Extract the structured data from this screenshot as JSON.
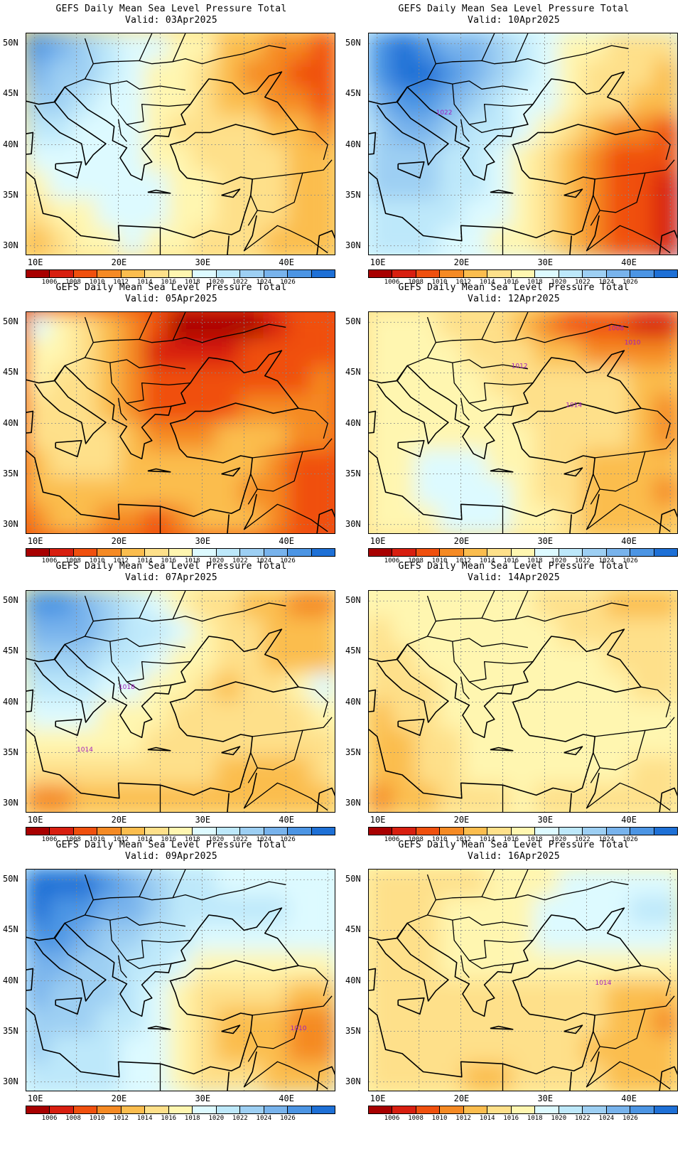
{
  "colors": {
    "fill": [
      "#a80000",
      "#d81f10",
      "#f0500e",
      "#f58a24",
      "#fbbd4e",
      "#fee08a",
      "#fff6b0",
      "#ddfaff",
      "#bde8fa",
      "#9dcff3",
      "#78b3ec",
      "#4c95e4",
      "#1e70d6"
    ],
    "contour_line": "#a020c0",
    "coast": "#000000"
  },
  "axes": {
    "lat_labels": [
      "50N",
      "45N",
      "40N",
      "35N",
      "30N"
    ],
    "lon_labels": [
      "10E",
      "20E",
      "30E",
      "40E"
    ]
  },
  "colorbar": {
    "labels": [
      "1006",
      "1008",
      "1010",
      "1012",
      "1014",
      "1016",
      "1018",
      "1020",
      "1022",
      "1024",
      "1026"
    ]
  },
  "panels": [
    {
      "title": "GEFS Daily Mean Sea Level Pressure Total",
      "valid": "Valid: 03Apr2025",
      "field": [
        [
          11,
          10,
          9,
          8,
          7,
          7,
          6,
          6,
          4,
          4,
          3,
          3,
          2
        ],
        [
          10,
          9,
          9,
          8,
          7,
          6,
          6,
          5,
          4,
          3,
          3,
          2,
          2
        ],
        [
          9,
          9,
          8,
          7,
          7,
          6,
          6,
          5,
          4,
          4,
          3,
          3,
          2
        ],
        [
          8,
          8,
          7,
          7,
          7,
          6,
          5,
          5,
          5,
          5,
          4,
          4,
          3
        ],
        [
          7,
          7,
          7,
          7,
          7,
          6,
          6,
          5,
          5,
          5,
          5,
          4,
          4
        ],
        [
          6,
          7,
          7,
          7,
          7,
          7,
          6,
          6,
          5,
          5,
          5,
          4,
          4
        ],
        [
          5,
          6,
          6,
          7,
          7,
          7,
          6,
          6,
          5,
          5,
          5,
          4,
          4
        ],
        [
          4,
          5,
          6,
          6,
          7,
          6,
          6,
          5,
          5,
          5,
          4,
          4,
          4
        ]
      ],
      "contour_labels": []
    },
    {
      "title": "GEFS Daily Mean Sea Level Pressure Total",
      "valid": "Valid: 10Apr2025",
      "field": [
        [
          11,
          12,
          11,
          10,
          10,
          9,
          8,
          7,
          6,
          6,
          5,
          5,
          5
        ],
        [
          11,
          12,
          12,
          11,
          10,
          9,
          8,
          7,
          6,
          5,
          5,
          5,
          4
        ],
        [
          10,
          11,
          11,
          10,
          9,
          8,
          7,
          7,
          6,
          5,
          5,
          4,
          4
        ],
        [
          9,
          10,
          10,
          9,
          8,
          8,
          7,
          6,
          5,
          4,
          3,
          3,
          2
        ],
        [
          9,
          9,
          9,
          8,
          8,
          7,
          6,
          5,
          4,
          3,
          2,
          2,
          2
        ],
        [
          9,
          9,
          9,
          8,
          8,
          7,
          6,
          5,
          4,
          3,
          2,
          2,
          1
        ],
        [
          8,
          8,
          8,
          8,
          7,
          7,
          6,
          5,
          4,
          3,
          2,
          2,
          1
        ],
        [
          8,
          8,
          8,
          7,
          7,
          6,
          6,
          5,
          4,
          3,
          2,
          2,
          1
        ]
      ],
      "contour_labels": [
        {
          "text": "1022",
          "lon": 18,
          "lat": 43
        }
      ]
    },
    {
      "title": "GEFS Daily Mean Sea Level Pressure Total",
      "valid": "Valid: 05Apr2025",
      "field": [
        [
          7,
          6,
          5,
          4,
          3,
          2,
          0,
          0,
          0,
          0,
          1,
          2,
          2
        ],
        [
          6,
          6,
          5,
          4,
          3,
          1,
          1,
          1,
          1,
          2,
          2,
          2,
          2
        ],
        [
          6,
          5,
          5,
          4,
          3,
          2,
          2,
          2,
          2,
          2,
          2,
          2,
          3
        ],
        [
          5,
          5,
          5,
          4,
          3,
          2,
          2,
          2,
          2,
          3,
          3,
          3,
          3
        ],
        [
          5,
          5,
          5,
          5,
          4,
          3,
          3,
          3,
          4,
          4,
          4,
          3,
          3
        ],
        [
          4,
          5,
          5,
          5,
          4,
          4,
          4,
          4,
          4,
          4,
          3,
          2,
          2
        ],
        [
          4,
          4,
          4,
          4,
          4,
          4,
          4,
          4,
          4,
          3,
          3,
          2,
          2
        ],
        [
          3,
          4,
          4,
          3,
          3,
          2,
          3,
          4,
          4,
          4,
          3,
          2,
          2
        ]
      ],
      "contour_labels": []
    },
    {
      "title": "GEFS Daily Mean Sea Level Pressure Total",
      "valid": "Valid: 12Apr2025",
      "field": [
        [
          6,
          6,
          6,
          5,
          5,
          5,
          4,
          3,
          2,
          2,
          2,
          1,
          1
        ],
        [
          6,
          6,
          6,
          6,
          5,
          5,
          5,
          4,
          4,
          3,
          3,
          3,
          3
        ],
        [
          6,
          6,
          6,
          6,
          6,
          5,
          5,
          5,
          5,
          5,
          5,
          4,
          4
        ],
        [
          6,
          6,
          6,
          6,
          6,
          6,
          5,
          5,
          5,
          5,
          5,
          4,
          3
        ],
        [
          6,
          6,
          6,
          6,
          6,
          6,
          6,
          5,
          5,
          5,
          5,
          4,
          3
        ],
        [
          6,
          6,
          7,
          7,
          7,
          6,
          6,
          5,
          5,
          4,
          4,
          4,
          4
        ],
        [
          6,
          6,
          7,
          7,
          7,
          7,
          6,
          5,
          5,
          4,
          4,
          4,
          3
        ],
        [
          6,
          6,
          6,
          7,
          7,
          7,
          6,
          6,
          5,
          4,
          4,
          4,
          4
        ]
      ],
      "contour_labels": [
        {
          "text": "1008",
          "lon": 38.5,
          "lat": 49.2
        },
        {
          "text": "1010",
          "lon": 40.5,
          "lat": 47.8
        },
        {
          "text": "1012",
          "lon": 27,
          "lat": 45.5
        },
        {
          "text": "1014",
          "lon": 33.5,
          "lat": 41.6
        }
      ]
    },
    {
      "title": "GEFS Daily Mean Sea Level Pressure Total",
      "valid": "Valid: 07Apr2025",
      "field": [
        [
          11,
          11,
          10,
          9,
          8,
          7,
          6,
          5,
          5,
          4,
          4,
          3,
          3
        ],
        [
          10,
          10,
          10,
          9,
          8,
          8,
          7,
          6,
          5,
          5,
          4,
          4,
          4
        ],
        [
          9,
          9,
          9,
          8,
          8,
          7,
          6,
          6,
          5,
          5,
          4,
          4,
          4
        ],
        [
          8,
          8,
          8,
          7,
          7,
          6,
          6,
          5,
          4,
          5,
          5,
          6,
          7
        ],
        [
          7,
          7,
          7,
          6,
          6,
          6,
          5,
          5,
          5,
          5,
          5,
          5,
          6
        ],
        [
          6,
          6,
          6,
          6,
          6,
          5,
          5,
          5,
          5,
          5,
          5,
          5,
          5
        ],
        [
          5,
          5,
          5,
          5,
          5,
          5,
          5,
          5,
          4,
          4,
          4,
          4,
          5
        ],
        [
          3,
          3,
          4,
          4,
          4,
          4,
          4,
          4,
          4,
          4,
          4,
          4,
          4
        ]
      ],
      "contour_labels": [
        {
          "text": "1018",
          "lon": 21,
          "lat": 41.3
        },
        {
          "text": "1014",
          "lon": 16,
          "lat": 35.1
        }
      ]
    },
    {
      "title": "GEFS Daily Mean Sea Level Pressure Total",
      "valid": "Valid: 14Apr2025",
      "field": [
        [
          6,
          6,
          6,
          6,
          6,
          6,
          6,
          5,
          5,
          5,
          4,
          4,
          4
        ],
        [
          5,
          6,
          6,
          6,
          6,
          6,
          6,
          6,
          5,
          5,
          5,
          5,
          5
        ],
        [
          5,
          5,
          6,
          6,
          6,
          6,
          6,
          6,
          6,
          6,
          5,
          5,
          5
        ],
        [
          5,
          5,
          5,
          6,
          6,
          6,
          6,
          6,
          6,
          6,
          6,
          5,
          5
        ],
        [
          4,
          5,
          5,
          6,
          6,
          6,
          6,
          6,
          6,
          6,
          6,
          6,
          6
        ],
        [
          4,
          4,
          5,
          5,
          6,
          6,
          6,
          6,
          6,
          6,
          6,
          6,
          6
        ],
        [
          4,
          4,
          5,
          5,
          6,
          6,
          6,
          6,
          6,
          6,
          6,
          5,
          5
        ],
        [
          3,
          4,
          4,
          5,
          5,
          5,
          6,
          5,
          5,
          5,
          5,
          5,
          5
        ]
      ],
      "contour_labels": []
    },
    {
      "title": "GEFS Daily Mean Sea Level Pressure Total",
      "valid": "Valid: 09Apr2025",
      "field": [
        [
          12,
          12,
          12,
          11,
          10,
          9,
          8,
          8,
          7,
          7,
          7,
          7,
          7
        ],
        [
          12,
          11,
          11,
          10,
          10,
          9,
          8,
          8,
          8,
          8,
          8,
          7,
          7
        ],
        [
          11,
          11,
          10,
          9,
          9,
          8,
          8,
          7,
          7,
          7,
          7,
          7,
          7
        ],
        [
          10,
          10,
          9,
          9,
          8,
          8,
          7,
          6,
          6,
          6,
          6,
          6,
          6
        ],
        [
          10,
          9,
          9,
          9,
          8,
          7,
          6,
          5,
          5,
          5,
          5,
          4,
          4
        ],
        [
          9,
          9,
          9,
          8,
          8,
          7,
          6,
          5,
          4,
          4,
          4,
          3,
          3
        ],
        [
          9,
          8,
          8,
          8,
          7,
          7,
          6,
          5,
          4,
          4,
          4,
          3,
          3
        ],
        [
          8,
          8,
          8,
          8,
          7,
          7,
          6,
          5,
          5,
          5,
          4,
          4,
          4
        ]
      ],
      "contour_labels": [
        {
          "text": "1010",
          "lon": 41.5,
          "lat": 35.1
        }
      ]
    },
    {
      "title": "GEFS Daily Mean Sea Level Pressure Total",
      "valid": "Valid: 16Apr2025",
      "field": [
        [
          5,
          5,
          5,
          5,
          5,
          6,
          6,
          6,
          7,
          7,
          7,
          7,
          7
        ],
        [
          5,
          5,
          5,
          6,
          6,
          6,
          6,
          7,
          7,
          7,
          7,
          8,
          8
        ],
        [
          5,
          5,
          5,
          6,
          6,
          6,
          6,
          7,
          7,
          7,
          7,
          7,
          7
        ],
        [
          5,
          5,
          5,
          6,
          6,
          6,
          6,
          6,
          6,
          6,
          6,
          6,
          6
        ],
        [
          5,
          5,
          5,
          5,
          5,
          5,
          5,
          5,
          5,
          5,
          4,
          4,
          4
        ],
        [
          5,
          5,
          5,
          5,
          5,
          5,
          5,
          5,
          5,
          5,
          4,
          4,
          3
        ],
        [
          5,
          5,
          5,
          5,
          5,
          5,
          5,
          5,
          5,
          4,
          4,
          4,
          4
        ],
        [
          5,
          5,
          5,
          5,
          4,
          4,
          5,
          5,
          5,
          5,
          4,
          4,
          4
        ]
      ],
      "contour_labels": [
        {
          "text": "1014",
          "lon": 37,
          "lat": 39.6
        }
      ]
    }
  ]
}
